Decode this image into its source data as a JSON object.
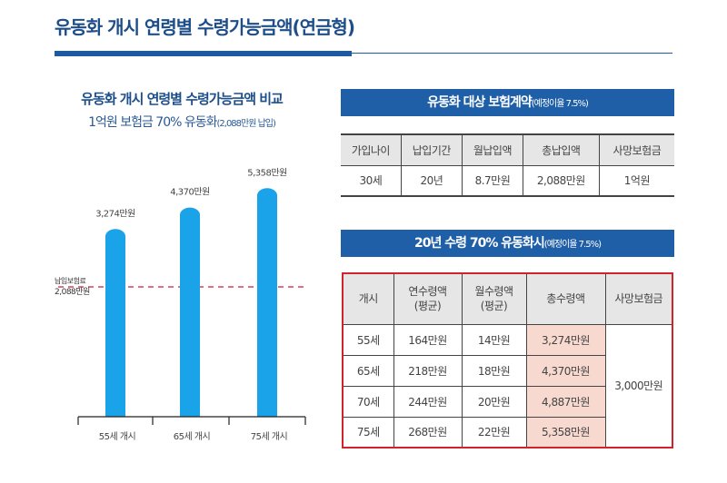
{
  "title": "유동화 개시 연령별 수령가능금액(연금형)",
  "chart_data": {
    "type": "bar",
    "title": "유동화 개시 연령별 수령가능금액 비교",
    "subtitle": "1억원 보험금 70% 유동화",
    "subtitle_note": "(2,088만원 납입)",
    "categories": [
      "55세 개시",
      "65세 개시",
      "75세 개시"
    ],
    "values": [
      3274,
      4370,
      5358
    ],
    "data_labels": [
      "3,274만원",
      "4,370만원",
      "5,358만원"
    ],
    "reference_line": {
      "value": 2088,
      "label_line1": "납입보험료",
      "label_line2": "2,088만원",
      "color": "#d9405a",
      "style": "dashed"
    },
    "bar_color": "#1aa3e8",
    "grid": false
  },
  "table1": {
    "banner": "유동화 대상 보험계약",
    "banner_note": "(예정이율 7.5%)",
    "headers": [
      "가입나이",
      "납입기간",
      "월납입액",
      "총납입액",
      "사망보험금"
    ],
    "row": [
      "30세",
      "20년",
      "8.7만원",
      "2,088만원",
      "1억원"
    ]
  },
  "table2": {
    "banner": "20년 수령 70% 유동화시",
    "banner_note": "(예정이율 7.5%)",
    "headers": [
      [
        "개시",
        ""
      ],
      [
        "연수령액",
        "(평균)"
      ],
      [
        "월수령액",
        "(평균)"
      ],
      [
        "총수령액",
        ""
      ],
      [
        "사망보험금",
        ""
      ]
    ],
    "rows": [
      [
        "55세",
        "164만원",
        "14만원",
        "3,274만원"
      ],
      [
        "65세",
        "218만원",
        "18만원",
        "4,370만원"
      ],
      [
        "70세",
        "244만원",
        "20만원",
        "4,887만원"
      ],
      [
        "75세",
        "268만원",
        "22만원",
        "5,358만원"
      ]
    ],
    "death_benefit": "3,000만원",
    "highlight_color": "#f8d9cf",
    "border_color": "#d0232b"
  }
}
